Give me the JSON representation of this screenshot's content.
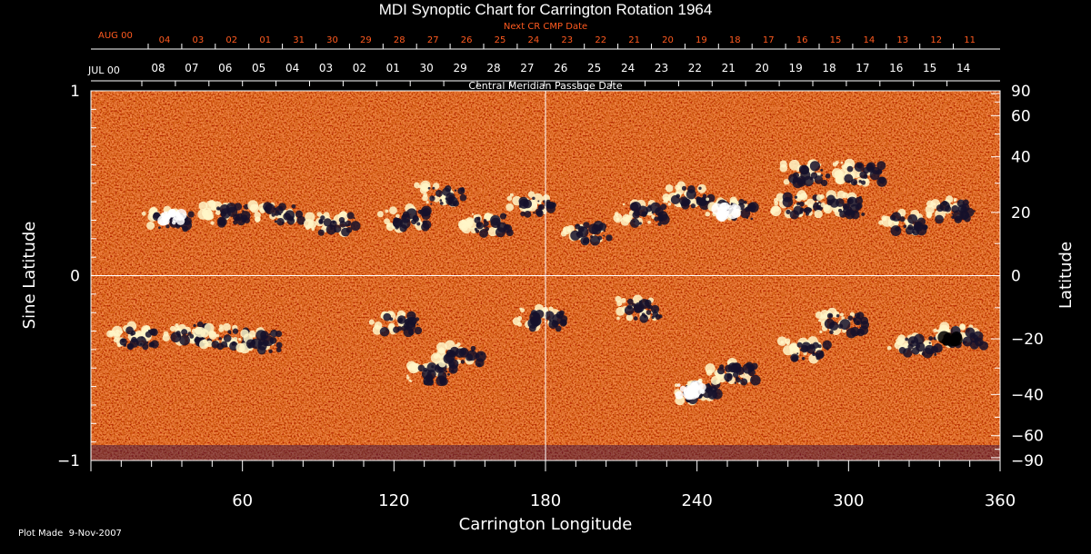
{
  "title": "MDI Synoptic Chart for Carrington Rotation 1964",
  "next_cr_label": "Next CR CMP Date",
  "next_month_label": "AUG 00",
  "next_cr_dates": [
    "04",
    "03",
    "02",
    "01",
    "31",
    "30",
    "29",
    "28",
    "27",
    "26",
    "25",
    "24",
    "23",
    "22",
    "21",
    "20",
    "19",
    "18",
    "17",
    "16",
    "15",
    "14",
    "13",
    "12",
    "11"
  ],
  "cmp_month_label": "JUL 00",
  "cmp_dates": [
    "08",
    "07",
    "06",
    "05",
    "04",
    "03",
    "02",
    "01",
    "30",
    "29",
    "28",
    "27",
    "26",
    "25",
    "24",
    "23",
    "22",
    "21",
    "20",
    "19",
    "18",
    "17",
    "16",
    "15",
    "14"
  ],
  "cmp_axis_label": "Central Meridian Passage Date",
  "left_axis_label": "Sine Latitude",
  "left_ticks": [
    {
      "label": "1",
      "value": 1
    },
    {
      "label": "0",
      "value": 0
    },
    {
      "label": "−1",
      "value": -1
    }
  ],
  "right_axis_label": "Latitude",
  "right_ticks": [
    {
      "label": "90",
      "deg": 90
    },
    {
      "label": "60",
      "deg": 60
    },
    {
      "label": "40",
      "deg": 40
    },
    {
      "label": "20",
      "deg": 20
    },
    {
      "label": "0",
      "deg": 0
    },
    {
      "label": "−20",
      "deg": -20
    },
    {
      "label": "−40",
      "deg": -40
    },
    {
      "label": "−60",
      "deg": -60
    },
    {
      "label": "−90",
      "deg": -90
    }
  ],
  "x_axis_label": "Carrington Longitude",
  "x_ticks": [
    60,
    120,
    180,
    240,
    300,
    360
  ],
  "x_range": [
    0,
    360
  ],
  "footer": "Plot Made  9-Nov-2007",
  "colors": {
    "background": "#000000",
    "map_base": "#e8460f",
    "text": "#ffffff",
    "next_cr_text": "#ff5a1f"
  }
}
